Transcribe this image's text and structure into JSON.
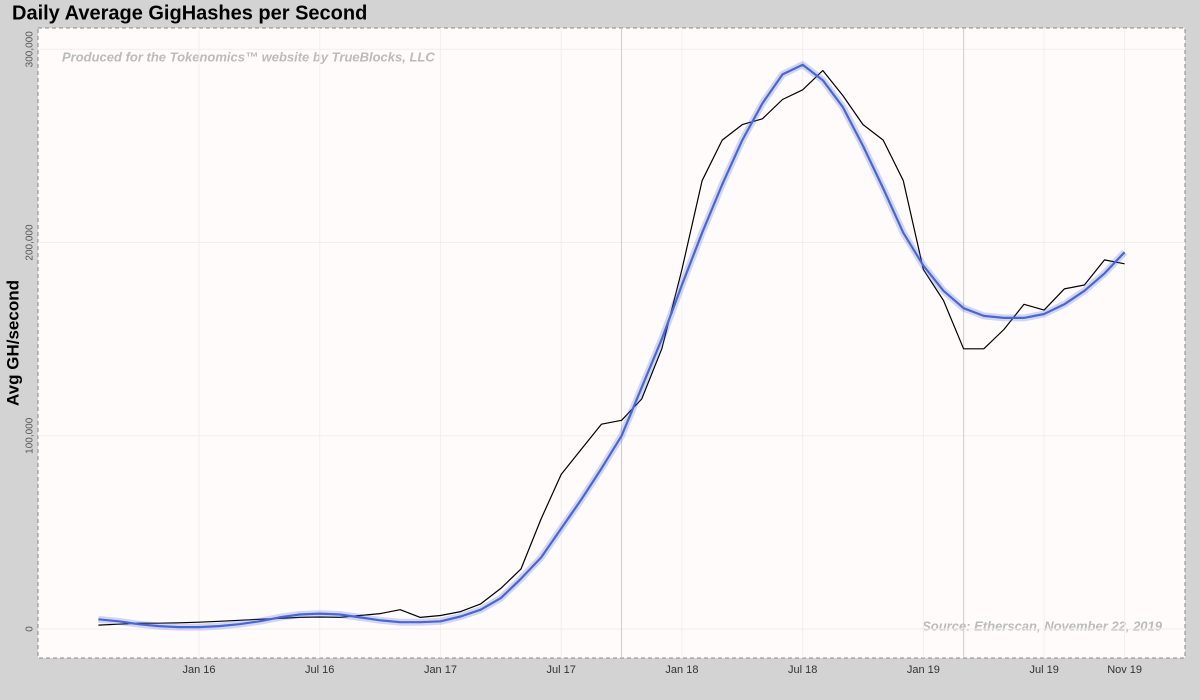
{
  "chart_data": {
    "type": "line",
    "title": "Daily Average GigHashes per Second",
    "y_label": "Avg GH/second",
    "annotations": [
      "Produced for the Tokenomics™ website by TrueBlocks, LLC",
      "Source: Etherscan, November 22, 2019"
    ],
    "x": [
      "2015-08",
      "2015-09",
      "2015-10",
      "2015-11",
      "2015-12",
      "2016-01",
      "2016-02",
      "2016-03",
      "2016-04",
      "2016-05",
      "2016-06",
      "2016-07",
      "2016-08",
      "2016-09",
      "2016-10",
      "2016-11",
      "2016-12",
      "2017-01",
      "2017-02",
      "2017-03",
      "2017-04",
      "2017-05",
      "2017-06",
      "2017-07",
      "2017-08",
      "2017-09",
      "2017-10",
      "2017-11",
      "2017-12",
      "2018-01",
      "2018-02",
      "2018-03",
      "2018-04",
      "2018-05",
      "2018-06",
      "2018-07",
      "2018-08",
      "2018-09",
      "2018-10",
      "2018-11",
      "2018-12",
      "2019-01",
      "2019-02",
      "2019-03",
      "2019-04",
      "2019-05",
      "2019-06",
      "2019-07",
      "2019-08",
      "2019-09",
      "2019-10",
      "2019-11"
    ],
    "series": [
      {
        "color": "#000000",
        "values": [
          2000,
          2500,
          3000,
          3000,
          3200,
          3500,
          4000,
          4500,
          5000,
          5500,
          6000,
          6200,
          6000,
          7000,
          8000,
          10000,
          6000,
          7000,
          9000,
          13000,
          21000,
          31000,
          57000,
          80000,
          93000,
          106000,
          108000,
          119000,
          145000,
          186000,
          232000,
          253000,
          261000,
          264000,
          274000,
          279000,
          289000,
          276000,
          261000,
          253000,
          232000,
          186000,
          170000,
          145000,
          145000,
          155000,
          168000,
          165000,
          176000,
          178000,
          191000,
          189000
        ]
      },
      {
        "color": "#4a66d6",
        "values": [
          5000,
          4000,
          2500,
          1500,
          1000,
          1000,
          1500,
          2500,
          4000,
          6000,
          7500,
          8000,
          7500,
          6000,
          4500,
          3500,
          3500,
          4000,
          6500,
          10000,
          16000,
          26000,
          37000,
          52000,
          67000,
          83000,
          100000,
          125000,
          150000,
          178000,
          205000,
          230000,
          253000,
          272000,
          287000,
          292000,
          284000,
          270000,
          250000,
          228000,
          205000,
          188000,
          175000,
          166000,
          162000,
          161000,
          161000,
          163000,
          168000,
          175000,
          184000,
          195000
        ]
      }
    ],
    "xlim": [
      "2015-05",
      "2020-02"
    ],
    "xticks": [
      {
        "value": "2016-01",
        "label": "Jan 16"
      },
      {
        "value": "2016-07",
        "label": "Jul 16"
      },
      {
        "value": "2017-01",
        "label": "Jan 17"
      },
      {
        "value": "2017-07",
        "label": "Jul 17"
      },
      {
        "value": "2018-01",
        "label": "Jan 18"
      },
      {
        "value": "2018-07",
        "label": "Jul 18"
      },
      {
        "value": "2019-01",
        "label": "Jan 19"
      },
      {
        "value": "2019-07",
        "label": "Jul 19"
      },
      {
        "value": "2019-11",
        "label": "Nov 19"
      }
    ],
    "ylim": [
      -15000,
      311000
    ],
    "yticks": [
      0,
      {
        "value": 100000,
        "label": "100,000"
      },
      {
        "value": 200000,
        "label": "200,000"
      },
      {
        "value": 300000,
        "label": "300,000"
      }
    ],
    "vlines": [
      "2017-10",
      "2019-03"
    ],
    "grid": true
  }
}
